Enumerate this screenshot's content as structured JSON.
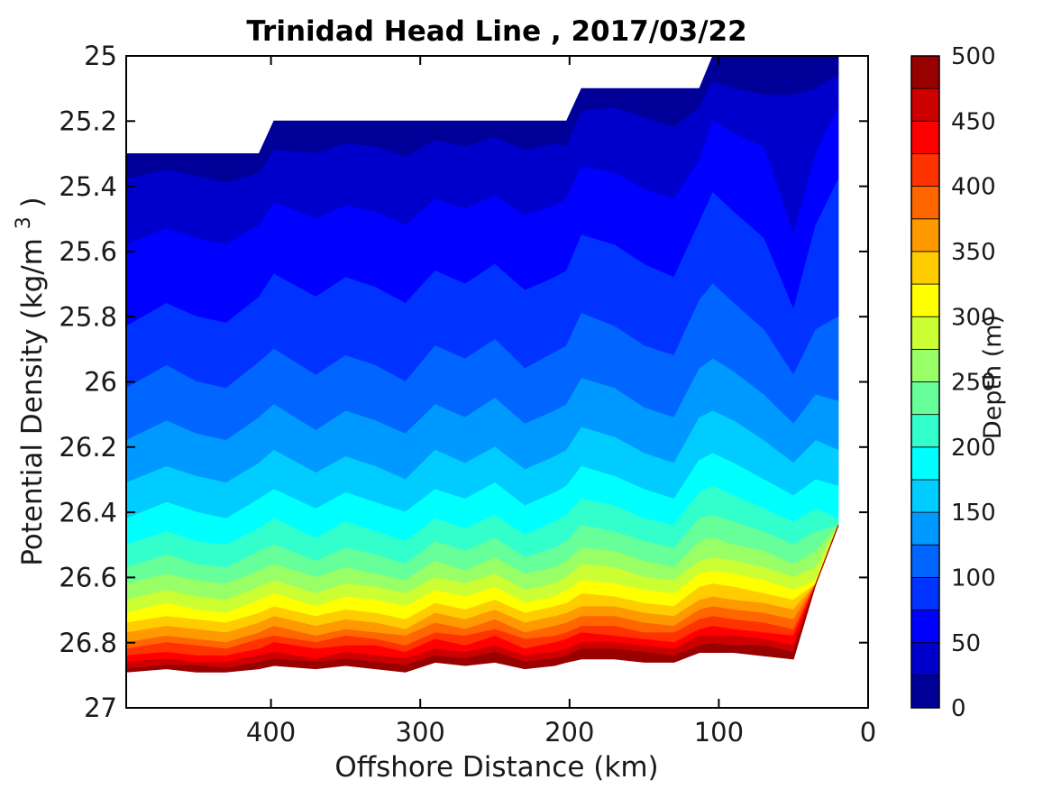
{
  "figure": {
    "background_color": "#ffffff",
    "axes_color": "#000000",
    "text_color": "#1a1a1a"
  },
  "chart_data": {
    "type": "filled_contour",
    "title": "Trinidad Head Line , 2017/03/22",
    "xlabel": "Offshore Distance (km)",
    "ylabel_parts": {
      "prefix": "Potential Density (kg/m",
      "sup": "3",
      "suffix": ")"
    },
    "x_axis_reversed": true,
    "xlim_km": [
      497,
      0
    ],
    "ylim_sigma": [
      25,
      27
    ],
    "x_ticks": [
      400,
      300,
      200,
      100,
      0
    ],
    "x_tick_labels": [
      "400",
      "300",
      "200",
      "100",
      "0"
    ],
    "y_ticks": [
      25,
      25.2,
      25.4,
      25.6,
      25.8,
      26,
      26.2,
      26.4,
      26.6,
      26.8,
      27
    ],
    "y_tick_labels": [
      "25",
      "25.2",
      "25.4",
      "25.6",
      "25.8",
      "26",
      "26.2",
      "26.4",
      "26.6",
      "26.8",
      "27"
    ],
    "grid": false,
    "colorbar": {
      "label": "Depth (m)",
      "position": "right",
      "min": 0,
      "max": 500,
      "band_step": 25,
      "ticks": [
        0,
        50,
        100,
        150,
        200,
        250,
        300,
        350,
        400,
        450,
        500
      ],
      "tick_labels": [
        "0",
        "50",
        "100",
        "150",
        "200",
        "250",
        "300",
        "350",
        "400",
        "450",
        "500"
      ],
      "band_colors_bottom_to_top": [
        "#000099",
        "#0000CC",
        "#0000FF",
        "#0033FF",
        "#0066FF",
        "#0099FF",
        "#00CCFF",
        "#00FFFF",
        "#33FFCC",
        "#66FF99",
        "#99FF66",
        "#CCFF33",
        "#FFFF00",
        "#FFCC00",
        "#FF9900",
        "#FF6600",
        "#FF3300",
        "#FF0000",
        "#CC0000",
        "#990000"
      ]
    },
    "stations_km": [
      497,
      470,
      450,
      430,
      408,
      398,
      370,
      350,
      330,
      310,
      290,
      270,
      250,
      230,
      210,
      202,
      192,
      170,
      150,
      130,
      113,
      104,
      90,
      70,
      50,
      35,
      20
    ],
    "max_sigma_per_station": [
      26.9,
      26.9,
      26.9,
      26.9,
      26.9,
      26.9,
      26.9,
      26.9,
      26.9,
      26.9,
      26.9,
      26.9,
      26.9,
      26.9,
      26.9,
      26.9,
      26.9,
      26.9,
      26.9,
      26.9,
      26.9,
      26.9,
      26.9,
      26.9,
      26.9,
      26.62,
      26.44
    ],
    "depth_levels_m": [
      0,
      25,
      50,
      75,
      100,
      125,
      150,
      175,
      200,
      225,
      250,
      275,
      300,
      325,
      350,
      375,
      400,
      425,
      450,
      475,
      500
    ],
    "sigma_by_level": [
      [
        25.3,
        25.3,
        25.3,
        25.3,
        25.3,
        25.2,
        25.2,
        25.2,
        25.2,
        25.2,
        25.2,
        25.2,
        25.2,
        25.2,
        25.2,
        25.2,
        25.1,
        25.1,
        25.1,
        25.1,
        25.1,
        25.0,
        25.0,
        25.0,
        25.0,
        25.0,
        25.0
      ],
      [
        25.38,
        25.35,
        25.37,
        25.39,
        25.36,
        25.29,
        25.3,
        25.27,
        25.28,
        25.31,
        25.26,
        25.28,
        25.25,
        25.29,
        25.27,
        25.28,
        25.17,
        25.16,
        25.19,
        25.22,
        25.16,
        25.08,
        25.1,
        25.12,
        25.12,
        25.1,
        25.06
      ],
      [
        25.58,
        25.53,
        25.56,
        25.58,
        25.52,
        25.45,
        25.5,
        25.46,
        25.48,
        25.52,
        25.44,
        25.47,
        25.43,
        25.49,
        25.46,
        25.44,
        25.34,
        25.36,
        25.41,
        25.44,
        25.32,
        25.2,
        25.24,
        25.28,
        25.55,
        25.3,
        25.16
      ],
      [
        25.83,
        25.76,
        25.8,
        25.82,
        25.74,
        25.67,
        25.74,
        25.68,
        25.71,
        25.76,
        25.66,
        25.7,
        25.64,
        25.72,
        25.68,
        25.66,
        25.55,
        25.58,
        25.64,
        25.68,
        25.51,
        25.42,
        25.48,
        25.56,
        25.78,
        25.52,
        25.38
      ],
      [
        26.02,
        25.95,
        26.0,
        26.02,
        25.94,
        25.9,
        25.98,
        25.92,
        25.95,
        26.0,
        25.89,
        25.93,
        25.87,
        25.96,
        25.91,
        25.89,
        25.79,
        25.83,
        25.89,
        25.92,
        25.75,
        25.7,
        25.76,
        25.84,
        25.98,
        25.84,
        25.8
      ],
      [
        26.18,
        26.12,
        26.16,
        26.18,
        26.11,
        26.07,
        26.15,
        26.09,
        26.12,
        26.16,
        26.07,
        26.11,
        26.05,
        26.13,
        26.09,
        26.07,
        25.99,
        26.02,
        26.08,
        26.11,
        25.96,
        25.93,
        25.97,
        26.04,
        26.13,
        26.04,
        26.06
      ],
      [
        26.31,
        26.26,
        26.29,
        26.31,
        26.25,
        26.21,
        26.28,
        26.23,
        26.26,
        26.3,
        26.21,
        26.25,
        26.2,
        26.27,
        26.23,
        26.21,
        26.14,
        26.17,
        26.22,
        26.25,
        26.11,
        26.09,
        26.12,
        26.18,
        26.25,
        26.18,
        26.21
      ],
      [
        26.42,
        26.37,
        26.4,
        26.42,
        26.36,
        26.33,
        26.39,
        26.34,
        26.37,
        26.4,
        26.33,
        26.36,
        26.31,
        26.38,
        26.34,
        26.32,
        26.26,
        26.29,
        26.33,
        26.36,
        26.24,
        26.22,
        26.25,
        26.3,
        26.35,
        26.3,
        26.32
      ],
      [
        26.5,
        26.46,
        26.49,
        26.5,
        26.45,
        26.42,
        26.48,
        26.43,
        26.46,
        26.49,
        26.42,
        26.45,
        26.41,
        26.47,
        26.43,
        26.41,
        26.36,
        26.38,
        26.42,
        26.44,
        26.34,
        26.32,
        26.35,
        26.39,
        26.43,
        26.39,
        26.42
      ],
      [
        26.57,
        26.53,
        26.56,
        26.57,
        26.52,
        26.5,
        26.55,
        26.51,
        26.53,
        26.56,
        26.49,
        26.52,
        26.48,
        26.54,
        26.51,
        26.49,
        26.44,
        26.46,
        26.49,
        26.51,
        26.42,
        26.41,
        26.43,
        26.46,
        26.5,
        26.46,
        26.5
      ],
      [
        26.62,
        26.59,
        26.61,
        26.62,
        26.58,
        26.56,
        26.6,
        26.57,
        26.59,
        26.61,
        26.55,
        26.58,
        26.54,
        26.59,
        26.57,
        26.55,
        26.51,
        26.52,
        26.55,
        26.57,
        26.49,
        26.48,
        26.5,
        26.52,
        26.56,
        26.52,
        26.56
      ],
      [
        26.67,
        26.64,
        26.66,
        26.67,
        26.63,
        26.61,
        26.65,
        26.62,
        26.63,
        26.65,
        26.6,
        26.62,
        26.59,
        26.64,
        26.62,
        26.6,
        26.56,
        26.57,
        26.6,
        26.61,
        26.55,
        26.54,
        26.55,
        26.57,
        26.6,
        26.57,
        26.61
      ],
      [
        26.71,
        26.68,
        26.7,
        26.71,
        26.67,
        26.65,
        26.69,
        26.66,
        26.67,
        26.69,
        26.64,
        26.66,
        26.63,
        26.68,
        26.66,
        26.64,
        26.61,
        26.62,
        26.64,
        26.65,
        26.59,
        26.58,
        26.59,
        26.61,
        26.64,
        26.61,
        26.65
      ],
      [
        26.74,
        26.72,
        26.73,
        26.74,
        26.71,
        26.69,
        26.72,
        26.7,
        26.71,
        26.73,
        26.68,
        26.7,
        26.67,
        26.71,
        26.69,
        26.68,
        26.65,
        26.66,
        26.68,
        26.69,
        26.63,
        26.62,
        26.63,
        26.65,
        26.67,
        26.65,
        26.68
      ],
      [
        26.77,
        26.75,
        26.76,
        26.77,
        26.74,
        26.72,
        26.75,
        26.73,
        26.74,
        26.76,
        26.71,
        26.73,
        26.7,
        26.74,
        26.72,
        26.71,
        26.69,
        26.69,
        26.71,
        26.72,
        26.67,
        26.66,
        26.67,
        26.68,
        26.7,
        26.68,
        26.71
      ],
      [
        26.8,
        26.78,
        26.79,
        26.8,
        26.77,
        26.75,
        26.78,
        26.76,
        26.77,
        26.78,
        26.74,
        26.76,
        26.73,
        26.77,
        26.75,
        26.74,
        26.72,
        26.72,
        26.74,
        26.75,
        26.7,
        26.69,
        26.7,
        26.71,
        26.73,
        26.71,
        26.74
      ],
      [
        26.82,
        26.8,
        26.81,
        26.82,
        26.79,
        26.78,
        26.8,
        26.78,
        26.79,
        26.81,
        26.77,
        26.78,
        26.76,
        26.79,
        26.78,
        26.77,
        26.75,
        26.75,
        26.77,
        26.77,
        26.73,
        26.72,
        26.73,
        26.74,
        26.76,
        26.74,
        26.76
      ],
      [
        26.84,
        26.83,
        26.84,
        26.84,
        26.82,
        26.8,
        26.82,
        26.81,
        26.81,
        26.83,
        26.79,
        26.81,
        26.78,
        26.82,
        26.8,
        26.79,
        26.77,
        26.78,
        26.79,
        26.8,
        26.76,
        26.75,
        26.76,
        26.77,
        26.78,
        26.77,
        26.79
      ],
      [
        26.86,
        26.85,
        26.86,
        26.86,
        26.84,
        26.83,
        26.85,
        26.83,
        26.84,
        26.85,
        26.82,
        26.83,
        26.81,
        26.84,
        26.83,
        26.82,
        26.8,
        26.8,
        26.81,
        26.82,
        26.78,
        26.78,
        26.78,
        26.79,
        26.81,
        26.79,
        26.81
      ],
      [
        26.88,
        26.87,
        26.87,
        26.88,
        26.86,
        26.85,
        26.86,
        26.85,
        26.86,
        26.87,
        26.84,
        26.85,
        26.83,
        26.86,
        26.85,
        26.84,
        26.82,
        26.82,
        26.83,
        26.84,
        26.81,
        26.8,
        26.81,
        26.81,
        26.83,
        26.81,
        26.83
      ],
      [
        26.89,
        26.88,
        26.89,
        26.89,
        26.88,
        26.87,
        26.88,
        26.87,
        26.88,
        26.89,
        26.86,
        26.87,
        26.86,
        26.88,
        26.87,
        26.86,
        26.85,
        26.85,
        26.86,
        26.86,
        26.83,
        26.83,
        26.83,
        26.84,
        26.85,
        26.84,
        26.85
      ]
    ]
  }
}
